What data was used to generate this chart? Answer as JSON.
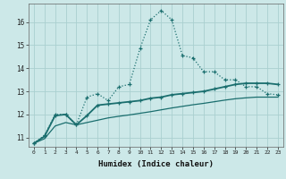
{
  "xlabel": "Humidex (Indice chaleur)",
  "bg_color": "#cce8e8",
  "grid_color": "#aad0d0",
  "line_color": "#1a6e6e",
  "xlim": [
    -0.5,
    23.5
  ],
  "ylim": [
    10.6,
    16.8
  ],
  "xticks": [
    0,
    1,
    2,
    3,
    4,
    5,
    6,
    7,
    8,
    9,
    10,
    11,
    12,
    13,
    14,
    15,
    16,
    17,
    18,
    19,
    20,
    21,
    22,
    23
  ],
  "yticks": [
    11,
    12,
    13,
    14,
    15,
    16
  ],
  "curve1_x": [
    0,
    1,
    2,
    3,
    4,
    5,
    6,
    7,
    8,
    9,
    10,
    11,
    12,
    13,
    14,
    15,
    16,
    17,
    18,
    19,
    20,
    21,
    22,
    23
  ],
  "curve1_y": [
    10.75,
    11.1,
    12.0,
    12.0,
    11.55,
    12.75,
    12.9,
    12.6,
    13.2,
    13.3,
    14.85,
    16.1,
    16.5,
    16.1,
    14.55,
    14.45,
    13.85,
    13.85,
    13.5,
    13.5,
    13.2,
    13.2,
    12.9,
    12.85
  ],
  "curve2_x": [
    0,
    1,
    2,
    3,
    4,
    5,
    6,
    7,
    8,
    9,
    10,
    11,
    12,
    13,
    14,
    15,
    16,
    17,
    18,
    19,
    20,
    21,
    22,
    23
  ],
  "curve2_y": [
    10.75,
    11.05,
    11.95,
    12.0,
    11.55,
    11.95,
    12.4,
    12.45,
    12.5,
    12.55,
    12.6,
    12.7,
    12.75,
    12.85,
    12.9,
    12.95,
    13.0,
    13.1,
    13.2,
    13.3,
    13.35,
    13.35,
    13.35,
    13.3
  ],
  "curve3_x": [
    0,
    1,
    2,
    3,
    4,
    5,
    6,
    7,
    8,
    9,
    10,
    11,
    12,
    13,
    14,
    15,
    16,
    17,
    18,
    19,
    20,
    21,
    22,
    23
  ],
  "curve3_y": [
    10.75,
    10.95,
    11.5,
    11.65,
    11.55,
    11.65,
    11.75,
    11.85,
    11.92,
    11.98,
    12.05,
    12.12,
    12.2,
    12.28,
    12.35,
    12.42,
    12.48,
    12.55,
    12.62,
    12.68,
    12.72,
    12.75,
    12.75,
    12.75
  ]
}
